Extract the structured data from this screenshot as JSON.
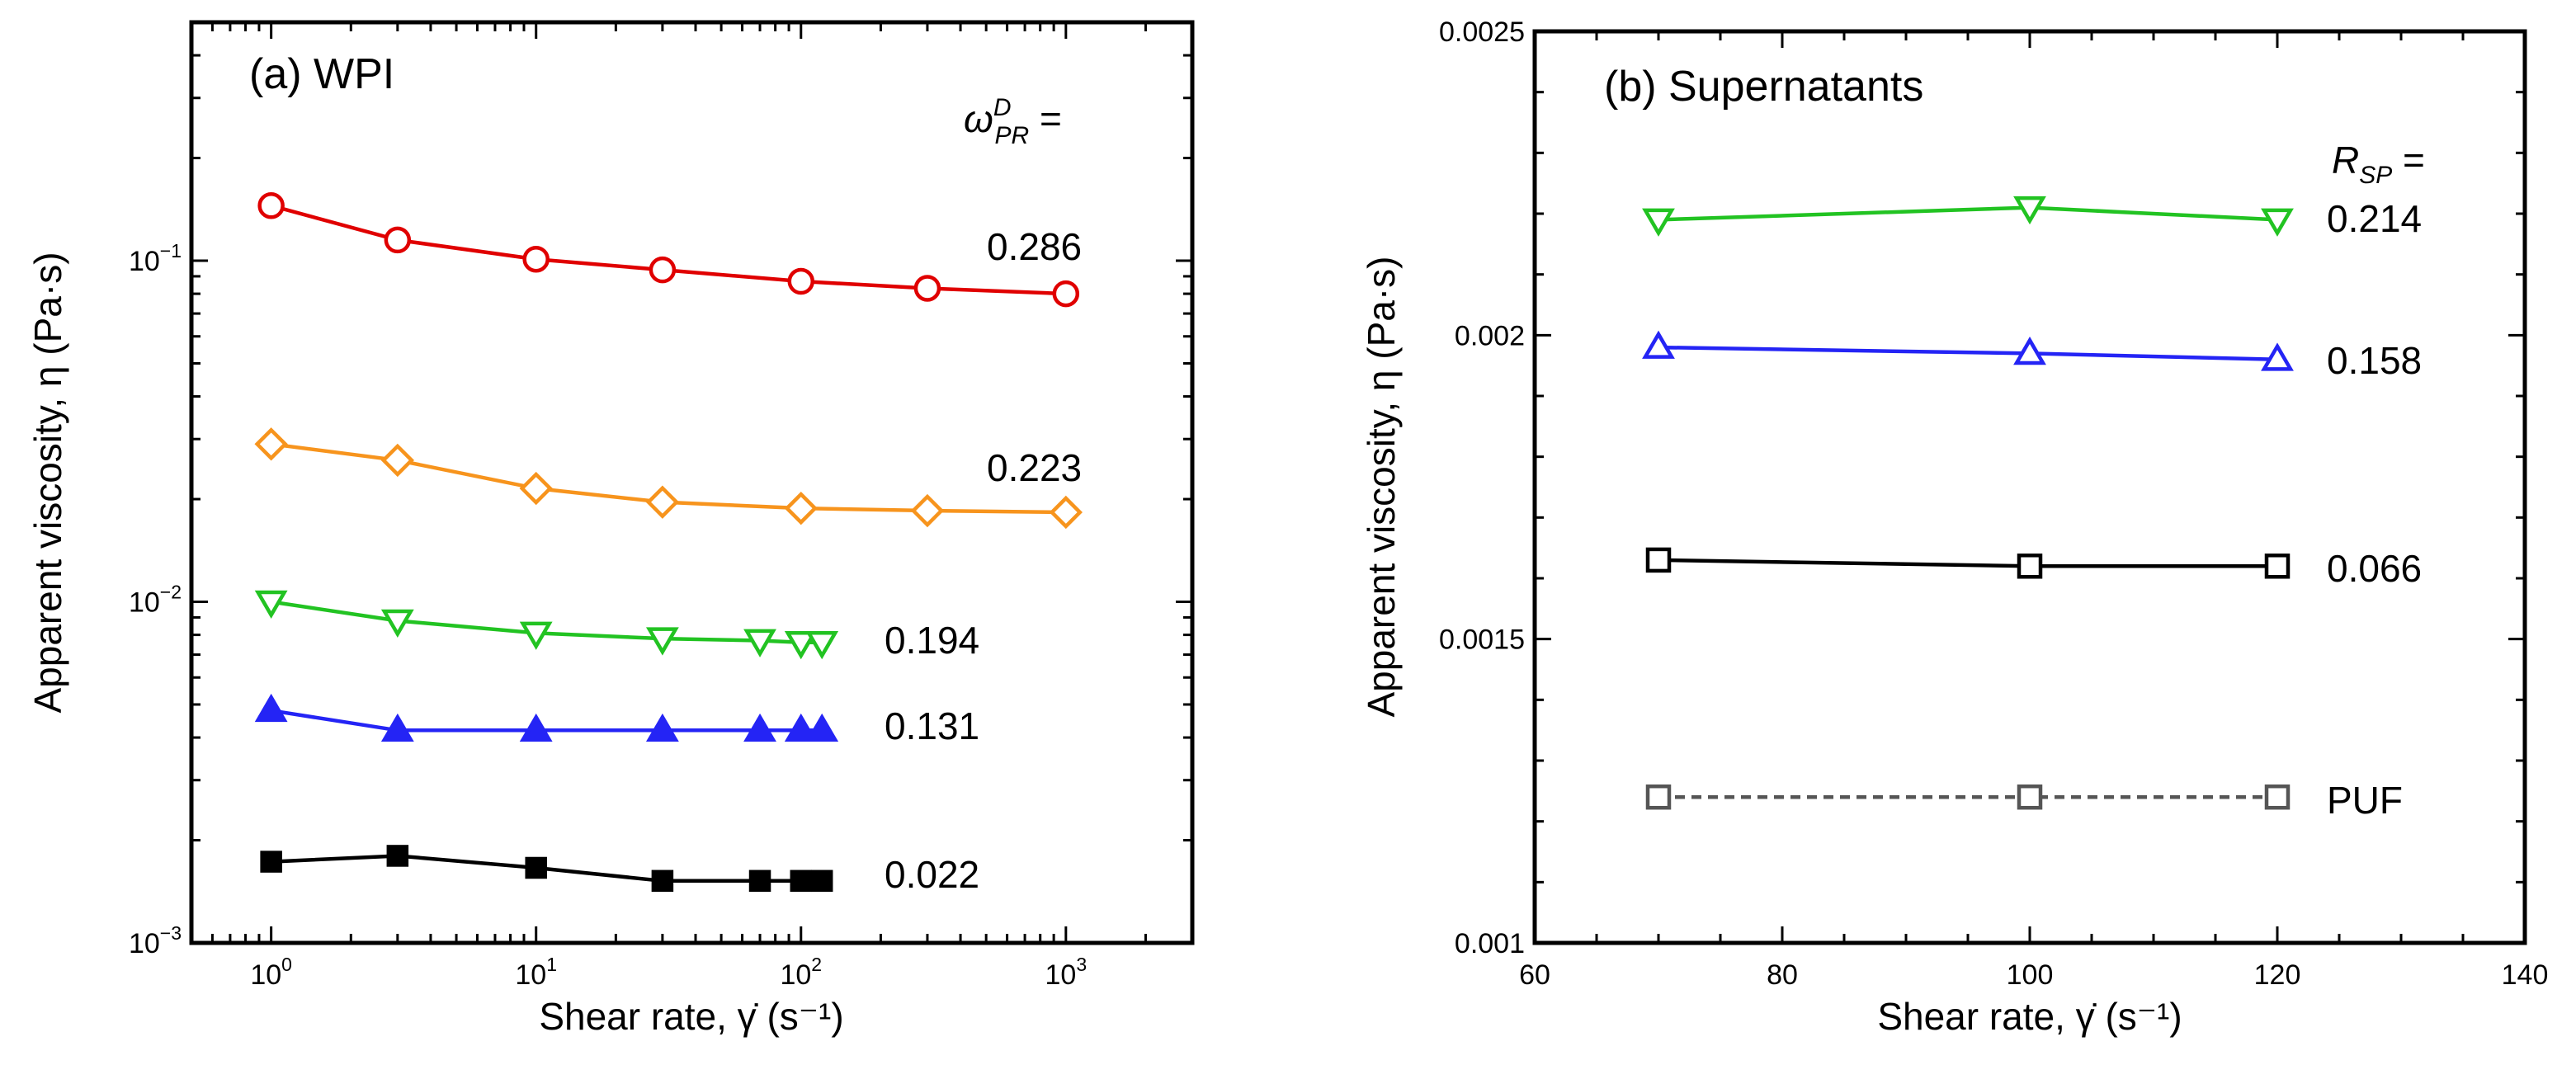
{
  "chart_data": [
    {
      "panel": "a",
      "type": "line",
      "title": "(a) WPI",
      "xlabel": "Shear rate, γ̇ (s⁻¹)",
      "ylabel": "Apparent viscosity, η (Pa·s)",
      "xscale": "log",
      "yscale": "log",
      "xlim": [
        0.5,
        3000
      ],
      "ylim": [
        0.001,
        0.5
      ],
      "grid": false,
      "legend_title": {
        "symbol": "ω",
        "superscript": "D",
        "subscript": "PR",
        "suffix": " ="
      },
      "x_ticks": [
        {
          "value": 1,
          "base": "10",
          "exp": "0"
        },
        {
          "value": 10,
          "base": "10",
          "exp": "1"
        },
        {
          "value": 100,
          "base": "10",
          "exp": "2"
        },
        {
          "value": 1000,
          "base": "10",
          "exp": "3"
        }
      ],
      "y_ticks": [
        {
          "value": 0.001,
          "base": "10",
          "exp": "−3"
        },
        {
          "value": 0.01,
          "base": "10",
          "exp": "−2"
        },
        {
          "value": 0.1,
          "base": "10",
          "exp": "−1"
        }
      ],
      "series": [
        {
          "name": "0.286",
          "color": "#e00000",
          "marker": "circle",
          "filled": false,
          "dashed": false,
          "x": [
            1,
            3,
            10,
            30,
            100,
            300,
            1000
          ],
          "y": [
            0.145,
            0.115,
            0.101,
            0.094,
            0.087,
            0.083,
            0.08
          ]
        },
        {
          "name": "0.223",
          "color": "#f7941d",
          "marker": "diamond",
          "filled": false,
          "dashed": false,
          "x": [
            1,
            3,
            10,
            30,
            100,
            300,
            1000
          ],
          "y": [
            0.029,
            0.026,
            0.0215,
            0.0196,
            0.0188,
            0.0185,
            0.0183
          ]
        },
        {
          "name": "0.194",
          "color": "#22c322",
          "marker": "triangle-down",
          "filled": false,
          "dashed": false,
          "x": [
            1,
            3,
            10,
            30,
            70,
            100,
            120
          ],
          "y": [
            0.01,
            0.0088,
            0.0081,
            0.0078,
            0.0077,
            0.0076,
            0.0076
          ]
        },
        {
          "name": "0.131",
          "color": "#2424f5",
          "marker": "triangle-up",
          "filled": true,
          "dashed": false,
          "x": [
            1,
            3,
            10,
            30,
            70,
            100,
            120
          ],
          "y": [
            0.0048,
            0.0042,
            0.0042,
            0.0042,
            0.0042,
            0.0042,
            0.0042
          ]
        },
        {
          "name": "0.022",
          "color": "#000000",
          "marker": "square",
          "filled": true,
          "dashed": false,
          "x": [
            1,
            3,
            10,
            30,
            70,
            100,
            120
          ],
          "y": [
            0.00173,
            0.0018,
            0.00166,
            0.00152,
            0.00152,
            0.00152,
            0.00152
          ]
        }
      ]
    },
    {
      "panel": "b",
      "type": "line",
      "title": "(b) Supernatants",
      "xlabel": "Shear rate, γ̇ (s⁻¹)",
      "ylabel": "Apparent viscosity, η (Pa·s)",
      "xscale": "linear",
      "yscale": "linear",
      "xlim": [
        60,
        140
      ],
      "ylim": [
        0.001,
        0.0025
      ],
      "grid": false,
      "legend_title": {
        "symbol": "R",
        "subscript": "SP",
        "suffix": " ="
      },
      "x_ticks": [
        {
          "value": 60,
          "label": "60"
        },
        {
          "value": 80,
          "label": "80"
        },
        {
          "value": 100,
          "label": "100"
        },
        {
          "value": 120,
          "label": "120"
        },
        {
          "value": 140,
          "label": "140"
        }
      ],
      "y_ticks": [
        {
          "value": 0.001,
          "label": "0.001"
        },
        {
          "value": 0.0015,
          "label": "0.0015"
        },
        {
          "value": 0.002,
          "label": "0.002"
        },
        {
          "value": 0.0025,
          "label": "0.0025"
        }
      ],
      "series": [
        {
          "name": "0.214",
          "color": "#22c322",
          "marker": "triangle-down",
          "filled": false,
          "dashed": false,
          "x": [
            70,
            100,
            120
          ],
          "y": [
            0.00219,
            0.00221,
            0.00219
          ]
        },
        {
          "name": "0.158",
          "color": "#2424f5",
          "marker": "triangle-up",
          "filled": false,
          "dashed": false,
          "x": [
            70,
            100,
            120
          ],
          "y": [
            0.00198,
            0.00197,
            0.00196
          ]
        },
        {
          "name": "0.066",
          "color": "#000000",
          "marker": "square",
          "filled": false,
          "dashed": false,
          "x": [
            70,
            100,
            120
          ],
          "y": [
            0.00163,
            0.00162,
            0.00162
          ]
        },
        {
          "name": "PUF",
          "color": "#555555",
          "marker": "square",
          "filled": false,
          "dashed": true,
          "x": [
            70,
            100,
            120
          ],
          "y": [
            0.00124,
            0.00124,
            0.00124
          ]
        }
      ]
    }
  ]
}
